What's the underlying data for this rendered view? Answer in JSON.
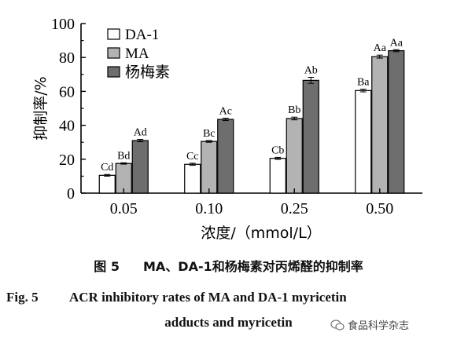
{
  "chart_data": {
    "type": "bar",
    "categories": [
      "0.05",
      "0.10",
      "0.25",
      "0.50"
    ],
    "series": [
      {
        "name": "DA-1",
        "values": [
          10.5,
          17.0,
          20.5,
          60.5
        ],
        "labels": [
          "Cd",
          "Cc",
          "Cb",
          "Ba"
        ],
        "color": "#ffffff"
      },
      {
        "name": "MA",
        "values": [
          17.5,
          30.5,
          44.0,
          80.5
        ],
        "labels": [
          "Bd",
          "Bc",
          "Bb",
          "Aa"
        ],
        "color": "#b3b3b3"
      },
      {
        "name": "杨梅素",
        "values": [
          31.0,
          43.5,
          66.5,
          84.0
        ],
        "labels": [
          "Ad",
          "Ac",
          "Ab",
          "Aa"
        ],
        "color": "#6e6e6e"
      }
    ],
    "errors": [
      [
        0.5,
        0.6,
        0.6,
        0.8
      ],
      [
        0.4,
        0.5,
        0.8,
        0.9
      ],
      [
        0.7,
        0.7,
        1.8,
        0.6
      ]
    ],
    "xlabel": "浓度/（mmol/L）",
    "ylabel": "抑制率/%",
    "ylim": [
      0,
      100
    ],
    "yticks": [
      "0",
      "20",
      "40",
      "60",
      "80",
      "100"
    ],
    "legend_position": "top-left"
  },
  "caption": {
    "cn_number": "图 5",
    "cn_text": "MA、DA-1和杨梅素对丙烯醛的抑制率",
    "en_number": "Fig. 5",
    "en_line1": "ACR inhibitory rates of MA and DA-1 myricetin",
    "en_line2": "adducts and myricetin"
  },
  "watermark": {
    "text": "食品科学杂志",
    "icon": "wechat-icon"
  }
}
